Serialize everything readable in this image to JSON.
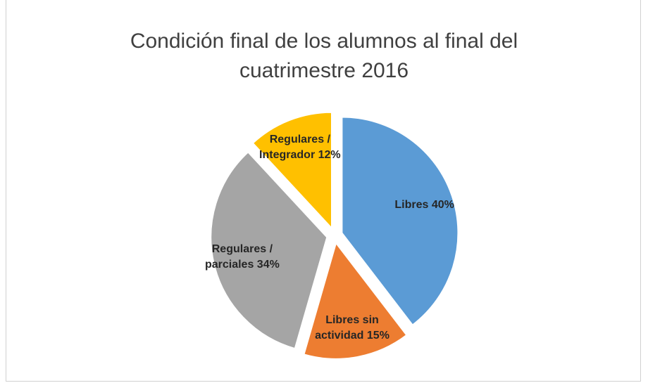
{
  "chart_data": {
    "type": "pie",
    "title": "Condición final de los alumnos al final del cuatrimestre 2016",
    "categories": [
      "Libres",
      "Libres sin actividad",
      "Regulares / parciales",
      "Regulares / Integrador"
    ],
    "values": [
      40,
      15,
      34,
      12
    ],
    "value_labels": [
      "40%",
      "15%",
      "34%",
      "12%"
    ],
    "colors": [
      "#5b9bd5",
      "#ed7d31",
      "#a5a5a5",
      "#ffc000"
    ]
  }
}
